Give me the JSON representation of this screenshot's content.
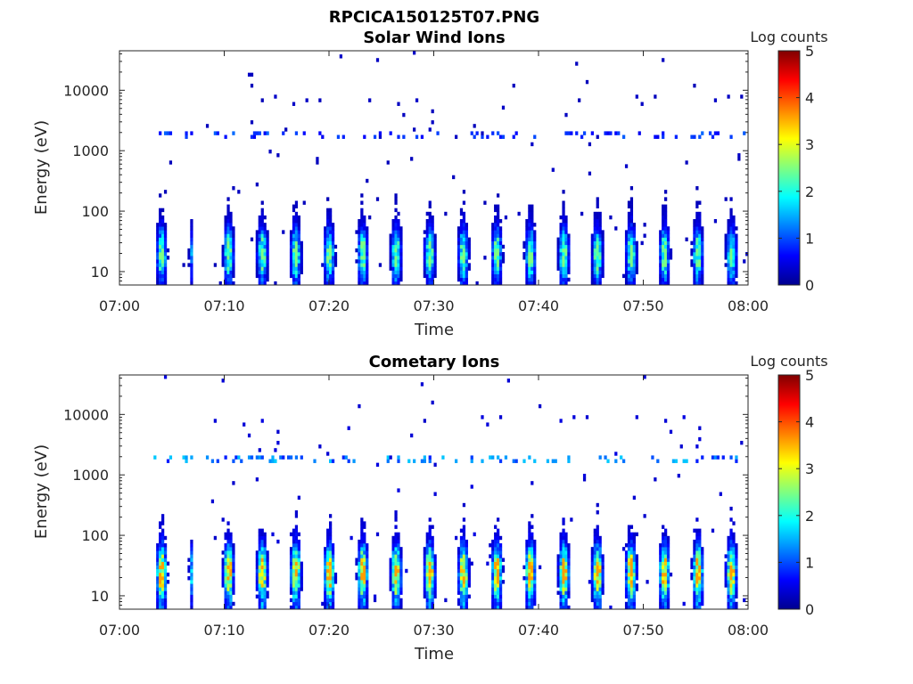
{
  "figure": {
    "title": "RPCICA150125T07.PNG"
  },
  "colormap": [
    "#00008f",
    "#0000ff",
    "#0080ff",
    "#00ffff",
    "#80ff80",
    "#ffff00",
    "#ff8000",
    "#ff0000",
    "#800000"
  ],
  "chart_data": [
    {
      "type": "heatmap",
      "title": "Solar Wind Ions",
      "xlabel": "Time",
      "ylabel": "Energy (eV)",
      "xlim": [
        "07:00",
        "08:00"
      ],
      "xticks": [
        "07:00",
        "07:10",
        "07:20",
        "07:30",
        "07:40",
        "07:50",
        "08:00"
      ],
      "ylim": [
        6,
        45000
      ],
      "yscale": "log",
      "yticks": [
        10,
        100,
        1000,
        10000
      ],
      "yticklabels": [
        "10",
        "100",
        "1000",
        "10000"
      ],
      "colorbar": {
        "label": "Log counts",
        "range": [
          0,
          5
        ],
        "ticks": [
          "0",
          "1",
          "2",
          "3",
          "4",
          "5"
        ]
      },
      "data_start": "07:03",
      "data_end": "08:00",
      "data_gaps": [
        [
          "07:05",
          "07:06"
        ],
        [
          "07:07",
          "07:08"
        ]
      ],
      "sweep_period_min": 3.2,
      "max_log_counts": 2.5,
      "peak_energy_ev": 20
    },
    {
      "type": "heatmap",
      "title": "Cometary Ions",
      "xlabel": "Time",
      "ylabel": "Energy (eV)",
      "xlim": [
        "07:00",
        "08:00"
      ],
      "xticks": [
        "07:00",
        "07:10",
        "07:20",
        "07:30",
        "07:40",
        "07:50",
        "08:00"
      ],
      "ylim": [
        6,
        45000
      ],
      "yscale": "log",
      "yticks": [
        10,
        100,
        1000,
        10000
      ],
      "yticklabels": [
        "10",
        "100",
        "1000",
        "10000"
      ],
      "colorbar": {
        "label": "Log counts",
        "range": [
          0,
          5
        ],
        "ticks": [
          "0",
          "1",
          "2",
          "3",
          "4",
          "5"
        ]
      },
      "data_start": "07:03",
      "data_end": "08:00",
      "data_gaps": [
        [
          "07:05",
          "07:06"
        ],
        [
          "07:07",
          "07:08"
        ]
      ],
      "sweep_period_min": 3.2,
      "max_log_counts": 3.6,
      "peak_energy_ev": 25
    }
  ]
}
